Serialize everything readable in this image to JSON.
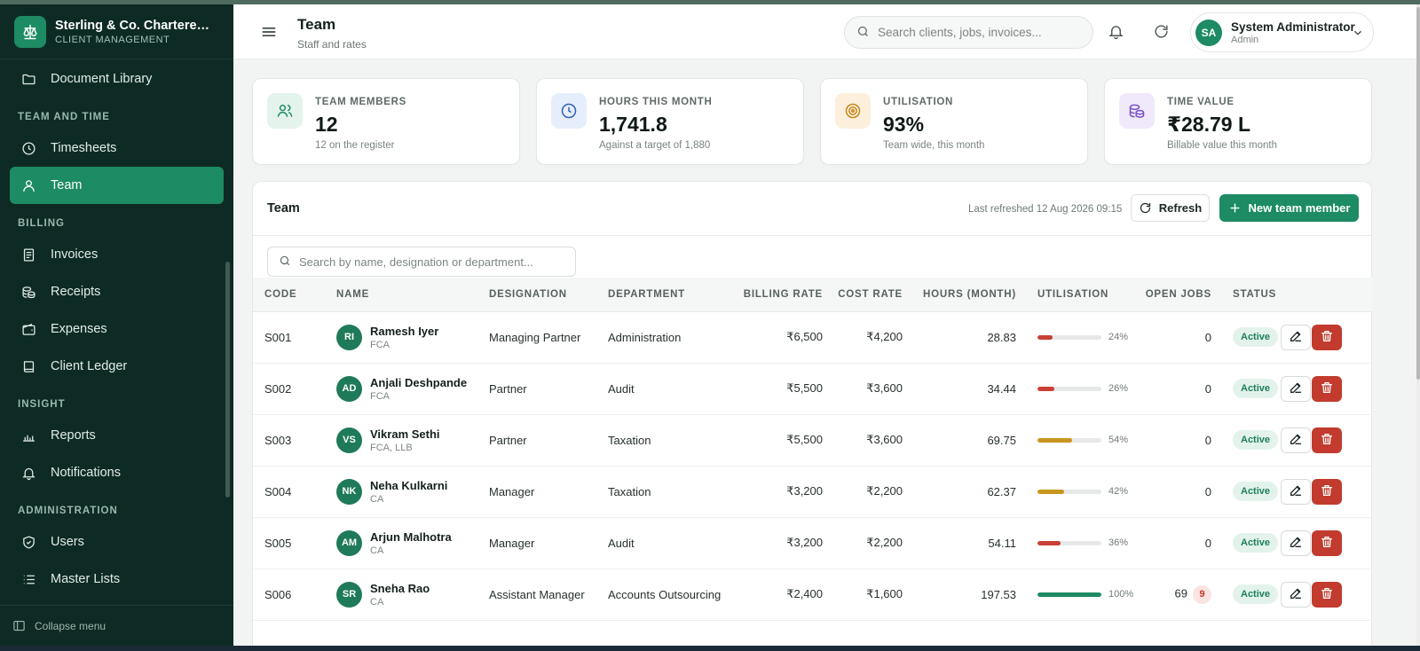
{
  "brand": {
    "name": "Sterling & Co. Chartered ...",
    "sub": "CLIENT MANAGEMENT"
  },
  "nav": {
    "document_library": "Document Library",
    "section_team_time": "TEAM AND TIME",
    "timesheets": "Timesheets",
    "team": "Team",
    "section_billing": "BILLING",
    "invoices": "Invoices",
    "receipts": "Receipts",
    "expenses": "Expenses",
    "client_ledger": "Client Ledger",
    "section_insight": "INSIGHT",
    "reports": "Reports",
    "notifications": "Notifications",
    "section_admin": "ADMINISTRATION",
    "users": "Users",
    "master_lists": "Master Lists",
    "collapse": "Collapse menu"
  },
  "header": {
    "title": "Team",
    "subtitle": "Staff and rates",
    "search_placeholder": "Search clients, jobs, invoices...",
    "user_initials": "SA",
    "user_name": "System Administrator",
    "user_role": "Admin"
  },
  "stats": [
    {
      "label": "TEAM MEMBERS",
      "value": "12",
      "sub": "12 on the register",
      "icon": "users-icon",
      "color": "#e4f4ec"
    },
    {
      "label": "HOURS THIS MONTH",
      "value": "1,741.8",
      "sub": "Against a target of 1,880",
      "icon": "clock-icon",
      "color": "#e6edfb"
    },
    {
      "label": "UTILISATION",
      "value": "93%",
      "sub": "Team wide, this month",
      "icon": "target-icon",
      "color": "#fcf0dc"
    },
    {
      "label": "TIME VALUE",
      "value": "₹28.79 L",
      "sub": "Billable value this month",
      "icon": "coins-icon",
      "color": "#efe9fb"
    }
  ],
  "panel": {
    "title": "Team",
    "last_refreshed": "Last refreshed 12 Aug 2026 09:15",
    "refresh_label": "Refresh",
    "new_label": "New team member",
    "search_placeholder": "Search by name, designation or department..."
  },
  "columns": [
    "CODE",
    "NAME",
    "DESIGNATION",
    "DEPARTMENT",
    "BILLING RATE",
    "COST RATE",
    "HOURS (MONTH)",
    "UTILISATION",
    "OPEN JOBS",
    "STATUS"
  ],
  "rows": [
    {
      "code": "S001",
      "initials": "RI",
      "name": "Ramesh Iyer",
      "qual": "FCA",
      "designation": "Managing Partner",
      "department": "Administration",
      "billing": "₹6,500",
      "cost": "₹4,200",
      "hours": "28.83",
      "util": 24,
      "util_label": "24%",
      "jobs": "0",
      "badge": "",
      "status": "Active"
    },
    {
      "code": "S002",
      "initials": "AD",
      "name": "Anjali Deshpande",
      "qual": "FCA",
      "designation": "Partner",
      "department": "Audit",
      "billing": "₹5,500",
      "cost": "₹3,600",
      "hours": "34.44",
      "util": 26,
      "util_label": "26%",
      "jobs": "0",
      "badge": "",
      "status": "Active"
    },
    {
      "code": "S003",
      "initials": "VS",
      "name": "Vikram Sethi",
      "qual": "FCA, LLB",
      "designation": "Partner",
      "department": "Taxation",
      "billing": "₹5,500",
      "cost": "₹3,600",
      "hours": "69.75",
      "util": 54,
      "util_label": "54%",
      "jobs": "0",
      "badge": "",
      "status": "Active"
    },
    {
      "code": "S004",
      "initials": "NK",
      "name": "Neha Kulkarni",
      "qual": "CA",
      "designation": "Manager",
      "department": "Taxation",
      "billing": "₹3,200",
      "cost": "₹2,200",
      "hours": "62.37",
      "util": 42,
      "util_label": "42%",
      "jobs": "0",
      "badge": "",
      "status": "Active"
    },
    {
      "code": "S005",
      "initials": "AM",
      "name": "Arjun Malhotra",
      "qual": "CA",
      "designation": "Manager",
      "department": "Audit",
      "billing": "₹3,200",
      "cost": "₹2,200",
      "hours": "54.11",
      "util": 36,
      "util_label": "36%",
      "jobs": "0",
      "badge": "",
      "status": "Active"
    },
    {
      "code": "S006",
      "initials": "SR",
      "name": "Sneha Rao",
      "qual": "CA",
      "designation": "Assistant Manager",
      "department": "Accounts Outsourcing",
      "billing": "₹2,400",
      "cost": "₹1,600",
      "hours": "197.53",
      "util": 100,
      "util_label": "100%",
      "jobs": "69",
      "badge": "9",
      "status": "Active"
    }
  ],
  "colors": {
    "accent": "#1d8b63",
    "sidebar": "#0d2b24",
    "util_low": "#c84036",
    "util_mid": "#c8961e",
    "util_high": "#1d8b63",
    "danger": "#c23b2e"
  }
}
